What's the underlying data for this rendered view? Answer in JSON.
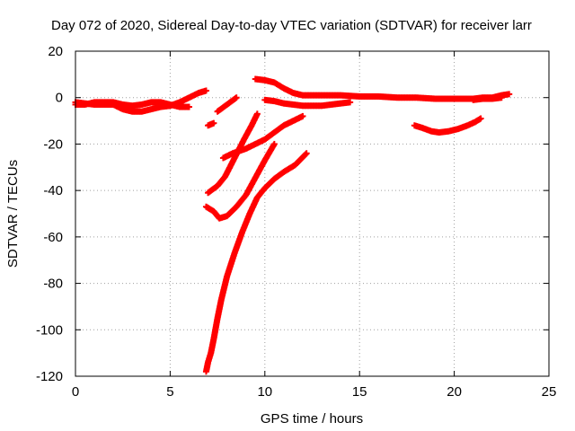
{
  "chart_data": {
    "type": "scatter",
    "title": "Day 072 of 2020, Sidereal Day-to-day VTEC variation (SDTVAR) for receiver larr",
    "xlabel": "GPS time / hours",
    "ylabel": "SDTVAR / TECUs",
    "xlim": [
      0,
      25
    ],
    "ylim": [
      -120,
      20
    ],
    "xticks": [
      0,
      5,
      10,
      15,
      20,
      25
    ],
    "yticks": [
      -120,
      -100,
      -80,
      -60,
      -40,
      -20,
      0,
      20
    ],
    "grid": true,
    "marker": "plus",
    "color": "#ff0000",
    "series": [
      {
        "points": [
          [
            0.0,
            -2
          ],
          [
            0.5,
            -2.5
          ],
          [
            1.0,
            -3
          ],
          [
            1.5,
            -3
          ],
          [
            2.0,
            -3
          ],
          [
            2.5,
            -5
          ],
          [
            3.0,
            -6
          ],
          [
            3.5,
            -6
          ],
          [
            4.0,
            -5
          ],
          [
            4.5,
            -4
          ],
          [
            5.0,
            -3.5
          ],
          [
            5.5,
            -2
          ],
          [
            6.0,
            0
          ],
          [
            6.5,
            2
          ],
          [
            6.9,
            3
          ]
        ]
      },
      {
        "points": [
          [
            0.0,
            -3
          ],
          [
            0.5,
            -3
          ],
          [
            1.0,
            -2
          ],
          [
            1.5,
            -2
          ],
          [
            2.0,
            -2
          ],
          [
            2.5,
            -3
          ],
          [
            3.0,
            -3.5
          ],
          [
            3.5,
            -3
          ],
          [
            4.0,
            -2
          ],
          [
            4.5,
            -2
          ],
          [
            5.0,
            -3
          ],
          [
            5.5,
            -4
          ],
          [
            6.0,
            -4
          ]
        ]
      },
      {
        "points": [
          [
            7.0,
            -12
          ],
          [
            7.3,
            -11
          ]
        ]
      },
      {
        "points": [
          [
            7.5,
            -6
          ],
          [
            8.0,
            -3
          ],
          [
            8.5,
            0
          ]
        ]
      },
      {
        "points": [
          [
            7.8,
            -26
          ],
          [
            8.3,
            -24
          ],
          [
            9.0,
            -22
          ],
          [
            9.5,
            -20
          ],
          [
            10.0,
            -18
          ],
          [
            10.5,
            -15
          ],
          [
            11.0,
            -12
          ],
          [
            11.5,
            -10
          ],
          [
            12.0,
            -8
          ]
        ]
      },
      {
        "points": [
          [
            7.0,
            -41
          ],
          [
            7.5,
            -38
          ],
          [
            7.9,
            -34
          ],
          [
            8.4,
            -26
          ],
          [
            8.9,
            -18
          ],
          [
            9.3,
            -12
          ],
          [
            9.6,
            -7
          ]
        ]
      },
      {
        "points": [
          [
            6.9,
            -47
          ],
          [
            7.3,
            -49
          ],
          [
            7.6,
            -52
          ],
          [
            8.0,
            -51
          ],
          [
            8.5,
            -47
          ],
          [
            9.0,
            -42
          ],
          [
            9.6,
            -33
          ],
          [
            10.0,
            -27
          ],
          [
            10.5,
            -20
          ]
        ]
      },
      {
        "points": [
          [
            6.9,
            -118
          ],
          [
            7.0,
            -114
          ],
          [
            7.15,
            -110
          ],
          [
            7.3,
            -104
          ],
          [
            7.5,
            -95
          ],
          [
            7.7,
            -87
          ],
          [
            8.0,
            -77
          ],
          [
            8.4,
            -67
          ],
          [
            8.8,
            -58
          ],
          [
            9.2,
            -50
          ],
          [
            9.6,
            -43
          ],
          [
            10.0,
            -39
          ],
          [
            10.5,
            -35
          ],
          [
            11.0,
            -32
          ],
          [
            11.6,
            -29
          ],
          [
            12.2,
            -24
          ]
        ]
      },
      {
        "points": [
          [
            9.5,
            8
          ],
          [
            10.0,
            7.5
          ],
          [
            10.5,
            6.5
          ],
          [
            11.0,
            4
          ],
          [
            11.5,
            2
          ],
          [
            12.0,
            1
          ],
          [
            12.5,
            1
          ],
          [
            13.0,
            1
          ],
          [
            14.0,
            1
          ],
          [
            15.0,
            0.5
          ],
          [
            16.0,
            0.5
          ],
          [
            17.0,
            0
          ],
          [
            18.0,
            0
          ],
          [
            19.0,
            -0.5
          ],
          [
            20.0,
            -0.5
          ],
          [
            21.0,
            -0.5
          ],
          [
            21.5,
            0
          ],
          [
            22.0,
            0
          ],
          [
            22.5,
            1
          ],
          [
            22.9,
            1.5
          ]
        ]
      },
      {
        "points": [
          [
            10.0,
            -1
          ],
          [
            10.5,
            -1.5
          ],
          [
            11.0,
            -2.5
          ],
          [
            11.5,
            -3
          ],
          [
            12.0,
            -3.5
          ],
          [
            12.5,
            -3.5
          ],
          [
            13.0,
            -3.5
          ],
          [
            13.5,
            -3
          ],
          [
            14.0,
            -2.5
          ],
          [
            14.5,
            -2
          ]
        ]
      },
      {
        "points": [
          [
            21.0,
            -1
          ],
          [
            21.5,
            -0.5
          ],
          [
            22.0,
            -0.5
          ],
          [
            22.5,
            0
          ]
        ]
      },
      {
        "points": [
          [
            17.9,
            -12
          ],
          [
            18.3,
            -13
          ],
          [
            18.8,
            -14.5
          ],
          [
            19.2,
            -15
          ],
          [
            19.7,
            -14.5
          ],
          [
            20.2,
            -13.5
          ],
          [
            20.7,
            -12
          ],
          [
            21.1,
            -10.5
          ],
          [
            21.4,
            -9
          ]
        ]
      }
    ]
  }
}
